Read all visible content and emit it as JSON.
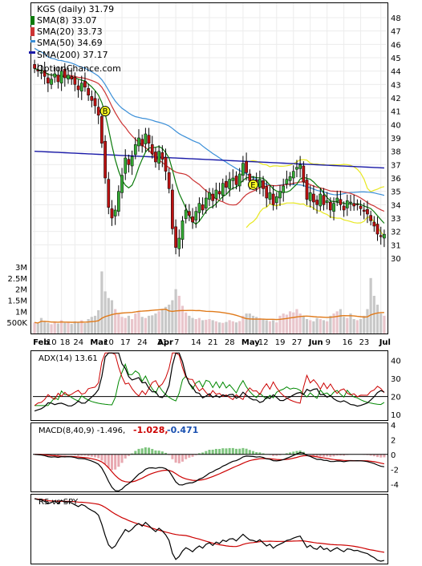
{
  "chart_data": {
    "type": "stock-chart",
    "symbol_label": "KGS (daily) 31.79",
    "watermark": "OptionChance.com",
    "legend": [
      {
        "label": "SMA(8) 33.07",
        "color": "#0a7a0a"
      },
      {
        "label": "SMA(20) 33.73",
        "color": "#cc3333"
      },
      {
        "label": "SMA(50) 34.69",
        "color": "#3b8fd8"
      },
      {
        "label": "SMA(200) 37.17",
        "color": "#1a1aa8"
      }
    ],
    "colors": {
      "up": "#33aa33",
      "down": "#bb1111",
      "bollinger": "#e8e820",
      "sma8": "#0a7a0a",
      "sma20": "#cc3333",
      "sma50": "#3b8fd8",
      "sma200": "#1a1aa8",
      "vol_up": "#e9c6cc",
      "vol_down": "#c8c8c8",
      "vol_avg": "#e07a1a",
      "adx": "#000000",
      "plus_di": "#008800",
      "minus_di": "#cc0000",
      "macd": "#000000",
      "macd_signal": "#cc0000",
      "rs": "#000000",
      "rs_ma": "#cc0000"
    },
    "price_axis": {
      "min": 30,
      "max": 48,
      "ticks": [
        30,
        31,
        32,
        33,
        34,
        35,
        36,
        37,
        38,
        39,
        40,
        41,
        42,
        43,
        44,
        45,
        46,
        47,
        48
      ]
    },
    "volume_axis": {
      "min": 0,
      "max": 3000000,
      "ticks": [
        {
          "v": 500000,
          "label": "500K"
        },
        {
          "v": 1000000,
          "label": "1M"
        },
        {
          "v": 1500000,
          "label": "1.5M"
        },
        {
          "v": 2000000,
          "label": "2M"
        },
        {
          "v": 2500000,
          "label": "2.5M"
        },
        {
          "v": 3000000,
          "label": "3M"
        }
      ]
    },
    "x_labels": [
      {
        "i": 0,
        "label": "Feb"
      },
      {
        "i": 4,
        "label": "10"
      },
      {
        "i": 8,
        "label": "18"
      },
      {
        "i": 12,
        "label": "24"
      },
      {
        "i": 17,
        "label": "Mar"
      },
      {
        "i": 21,
        "label": "10"
      },
      {
        "i": 26,
        "label": "17"
      },
      {
        "i": 31,
        "label": "24"
      },
      {
        "i": 37,
        "label": "31"
      },
      {
        "i": 37,
        "label": "Apr"
      },
      {
        "i": 42,
        "label": "7"
      },
      {
        "i": 47,
        "label": "14"
      },
      {
        "i": 52,
        "label": "21"
      },
      {
        "i": 57,
        "label": "28"
      },
      {
        "i": 62,
        "label": "May"
      },
      {
        "i": 67,
        "label": "12"
      },
      {
        "i": 72,
        "label": "19"
      },
      {
        "i": 77,
        "label": "27"
      },
      {
        "i": 82,
        "label": "Jun"
      },
      {
        "i": 87,
        "label": "9"
      },
      {
        "i": 92,
        "label": "16"
      },
      {
        "i": 97,
        "label": "23"
      },
      {
        "i": 103,
        "label": "Jul"
      }
    ],
    "bold_labels": [
      "Feb",
      "Mar",
      "Apr",
      "May",
      "Jun",
      "Jul"
    ],
    "signals": [
      {
        "i": 21,
        "price": 41.0,
        "label": "B"
      },
      {
        "i": 65,
        "price": 35.5,
        "label": "E"
      }
    ],
    "close": [
      44.2,
      44.0,
      43.9,
      43.6,
      43.1,
      43.4,
      43.8,
      43.2,
      44.0,
      43.5,
      43.7,
      43.4,
      43.0,
      42.6,
      43.1,
      42.8,
      42.2,
      41.8,
      41.4,
      40.7,
      38.6,
      36.0,
      33.8,
      33.0,
      33.6,
      35.0,
      36.2,
      37.5,
      37.0,
      37.6,
      38.5,
      39.0,
      38.4,
      39.3,
      38.6,
      37.8,
      37.2,
      38.0,
      37.4,
      36.5,
      35.2,
      32.2,
      30.8,
      31.5,
      32.8,
      33.6,
      33.2,
      32.7,
      33.5,
      34.1,
      33.6,
      34.5,
      34.9,
      34.3,
      35.1,
      34.8,
      35.6,
      35.3,
      35.9,
      36.0,
      35.5,
      36.3,
      37.1,
      36.4,
      35.8,
      35.7,
      35.4,
      35.9,
      35.2,
      34.5,
      34.9,
      34.0,
      34.6,
      35.0,
      35.4,
      35.9,
      36.1,
      36.5,
      36.8,
      37.0,
      35.7,
      34.4,
      34.9,
      34.2,
      34.0,
      34.8,
      34.0,
      34.3,
      33.6,
      34.1,
      34.5,
      34.0,
      33.6,
      34.3,
      34.2,
      33.9,
      34.0,
      33.7,
      33.5,
      33.3,
      32.8,
      32.4,
      31.8,
      31.6,
      31.79
    ],
    "volume": [
      500000,
      450000,
      700000,
      550000,
      480000,
      420000,
      520000,
      450000,
      600000,
      480000,
      500000,
      430000,
      550000,
      520000,
      600000,
      470000,
      650000,
      750000,
      800000,
      1050000,
      2800000,
      1900000,
      1600000,
      1500000,
      1100000,
      900000,
      750000,
      700000,
      800000,
      650000,
      900000,
      1000000,
      750000,
      700000,
      800000,
      820000,
      900000,
      1000000,
      1100000,
      1200000,
      1300000,
      1500000,
      2000000,
      1700000,
      1250000,
      950000,
      800000,
      700000,
      650000,
      700000,
      600000,
      620000,
      650000,
      600000,
      550000,
      500000,
      480000,
      520000,
      600000,
      550000,
      500000,
      560000,
      800000,
      900000,
      900000,
      800000,
      750000,
      700000,
      650000,
      600000,
      550000,
      600000,
      500000,
      800000,
      900000,
      850000,
      1000000,
      950000,
      1100000,
      900000,
      800000,
      650000,
      600000,
      550000,
      700000,
      650000,
      600000,
      550000,
      800000,
      900000,
      1000000,
      1100000,
      750000,
      700000,
      900000,
      650000,
      600000,
      650000,
      800000,
      1100000,
      2500000,
      1700000,
      1300000,
      900000,
      800000
    ],
    "adx_axis": {
      "min": 7,
      "max": 45,
      "ticks": [
        10,
        20,
        30,
        40
      ]
    },
    "adx_label": "ADX(14) 13.61",
    "macd_axis": {
      "min": -5,
      "max": 4.2,
      "ticks": [
        4,
        2,
        0,
        -2,
        -4
      ]
    },
    "macd_label": "MACD(8,40,9) -1.496,",
    "macd_values": [
      "-1.028,",
      "-0.471"
    ],
    "rs_label": "RS vs SPY"
  }
}
